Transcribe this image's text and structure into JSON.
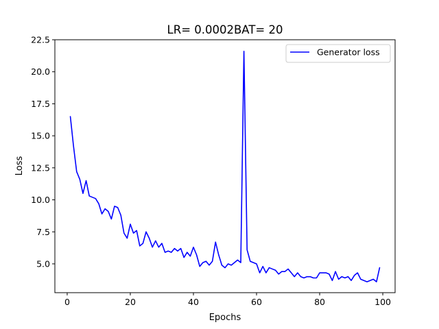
{
  "chart_data": {
    "type": "line",
    "title": "LR= 0.0002BAT= 20",
    "xlabel": "Epochs",
    "ylabel": "Loss",
    "xlim": [
      -3.9,
      103.9
    ],
    "ylim": [
      2.75,
      22.5
    ],
    "x_ticks": [
      0,
      20,
      40,
      60,
      80,
      100
    ],
    "y_ticks": [
      5.0,
      7.5,
      10.0,
      12.5,
      15.0,
      17.5,
      20.0,
      22.5
    ],
    "x_tick_labels": [
      "0",
      "20",
      "40",
      "60",
      "80",
      "100"
    ],
    "y_tick_labels": [
      "5.0",
      "7.5",
      "10.0",
      "12.5",
      "15.0",
      "17.5",
      "20.0",
      "22.5"
    ],
    "grid": false,
    "legend_position": "top-right",
    "series": [
      {
        "name": "Generator loss",
        "color": "#0000ff",
        "x": [
          1,
          2,
          3,
          4,
          5,
          6,
          7,
          8,
          9,
          10,
          11,
          12,
          13,
          14,
          15,
          16,
          17,
          18,
          19,
          20,
          21,
          22,
          23,
          24,
          25,
          26,
          27,
          28,
          29,
          30,
          31,
          32,
          33,
          34,
          35,
          36,
          37,
          38,
          39,
          40,
          41,
          42,
          43,
          44,
          45,
          46,
          47,
          48,
          49,
          50,
          51,
          52,
          53,
          54,
          55,
          56,
          57,
          58,
          59,
          60,
          61,
          62,
          63,
          64,
          65,
          66,
          67,
          68,
          69,
          70,
          71,
          72,
          73,
          74,
          75,
          76,
          77,
          78,
          79,
          80,
          81,
          82,
          83,
          84,
          85,
          86,
          87,
          88,
          89,
          90,
          91,
          92,
          93,
          94,
          95,
          96,
          97,
          98,
          99
        ],
        "values": [
          16.5,
          14.2,
          12.2,
          11.6,
          10.5,
          11.5,
          10.3,
          10.2,
          10.1,
          9.7,
          8.9,
          9.3,
          9.1,
          8.5,
          9.5,
          9.4,
          8.8,
          7.4,
          7.0,
          8.1,
          7.4,
          7.6,
          6.4,
          6.6,
          7.5,
          7.0,
          6.3,
          6.8,
          6.3,
          6.6,
          5.9,
          6.0,
          5.9,
          6.2,
          6.0,
          6.2,
          5.5,
          5.9,
          5.6,
          6.3,
          5.7,
          4.8,
          5.1,
          5.2,
          4.9,
          5.2,
          6.7,
          5.7,
          4.9,
          4.7,
          5.0,
          4.9,
          5.1,
          5.3,
          5.1,
          21.6,
          6.1,
          5.2,
          5.1,
          5.0,
          4.3,
          4.8,
          4.3,
          4.7,
          4.6,
          4.5,
          4.2,
          4.4,
          4.4,
          4.6,
          4.3,
          4.0,
          4.3,
          4.0,
          3.9,
          4.0,
          4.0,
          3.9,
          3.9,
          4.3,
          4.3,
          4.3,
          4.2,
          3.7,
          4.4,
          3.8,
          4.0,
          3.9,
          4.0,
          3.7,
          4.1,
          4.3,
          3.8,
          3.7,
          3.6,
          3.7,
          3.8,
          3.6,
          4.7
        ]
      }
    ]
  }
}
